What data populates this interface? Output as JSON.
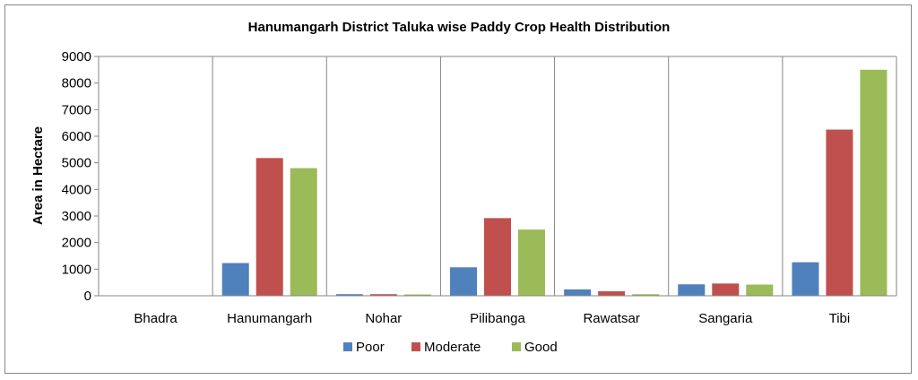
{
  "chart_data": {
    "type": "bar",
    "title": "Hanumangarh District Taluka wise Paddy Crop Health Distribution",
    "xlabel": "",
    "ylabel": "Area in Hectare",
    "categories": [
      "Bhadra",
      "Hanumangarh",
      "Nohar",
      "Pilibanga",
      "Rawatsar",
      "Sangaria",
      "Tibi"
    ],
    "series": [
      {
        "name": "Poor",
        "color": "#4f81bd",
        "values": [
          0,
          1230,
          60,
          1070,
          240,
          430,
          1260
        ]
      },
      {
        "name": "Moderate",
        "color": "#c0504d",
        "values": [
          0,
          5180,
          60,
          2920,
          170,
          460,
          6250
        ]
      },
      {
        "name": "Good",
        "color": "#9bbb59",
        "values": [
          0,
          4800,
          50,
          2490,
          60,
          420,
          8500
        ]
      }
    ],
    "ylim": [
      0,
      9000
    ],
    "yticks": [
      0,
      1000,
      2000,
      3000,
      4000,
      5000,
      6000,
      7000,
      8000,
      9000
    ],
    "grid": "vertical category dividers",
    "legend": "bottom"
  }
}
